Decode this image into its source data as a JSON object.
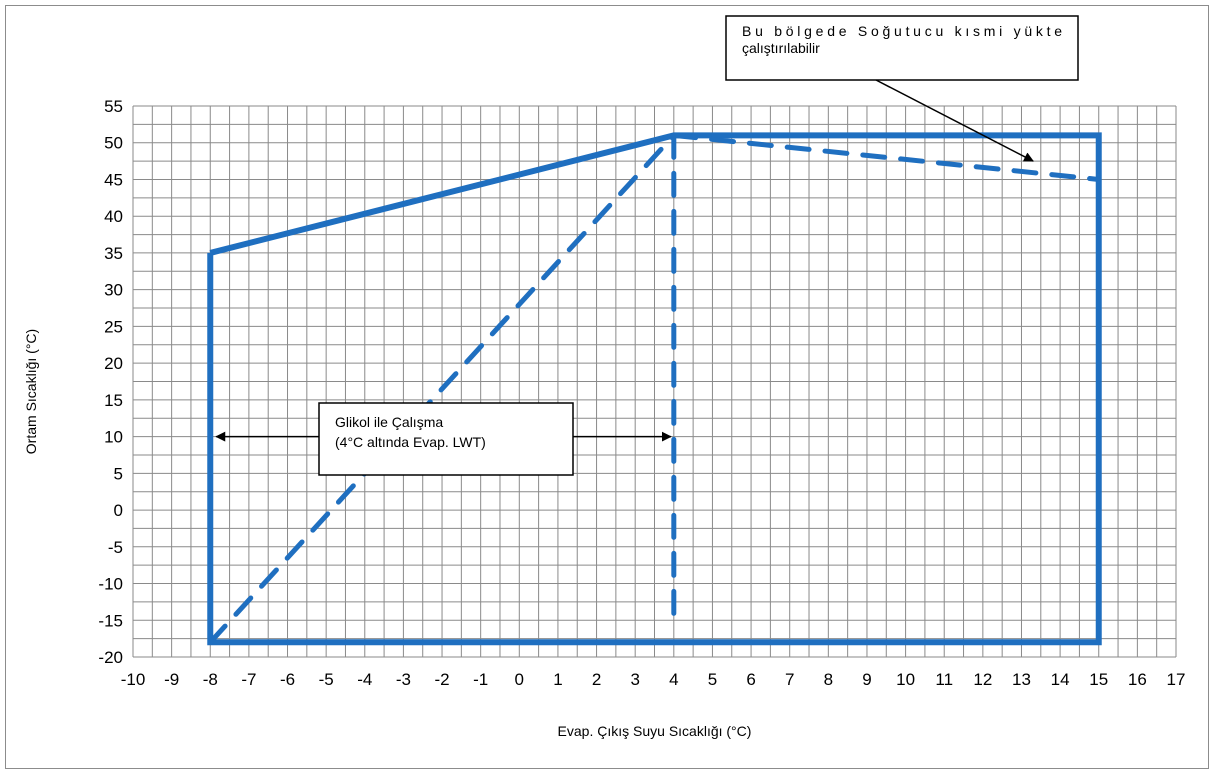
{
  "chart_data": {
    "type": "line",
    "xlabel": "Evap. Çıkış Suyu Sıcaklığı (°C)",
    "ylabel": "Ortam Sıcaklığı (°C)",
    "xlim": [
      -10,
      17
    ],
    "ylim": [
      -20,
      55
    ],
    "xticks": [
      -10,
      -9,
      -8,
      -7,
      -6,
      -5,
      -4,
      -3,
      -2,
      -1,
      0,
      1,
      2,
      3,
      4,
      5,
      6,
      7,
      8,
      9,
      10,
      11,
      12,
      13,
      14,
      15,
      16,
      17
    ],
    "yticks": [
      55,
      50,
      45,
      40,
      35,
      30,
      25,
      20,
      15,
      10,
      5,
      0,
      -5,
      -10,
      -15,
      -20
    ],
    "grid": true,
    "color": "#1f6fc0",
    "series": [
      {
        "style": "solid",
        "x": [
          -8,
          4,
          15,
          15,
          -8,
          -8
        ],
        "y": [
          35,
          51,
          51,
          -18,
          -18,
          35
        ]
      },
      {
        "style": "dashed",
        "x": [
          -8,
          4
        ],
        "y": [
          -18,
          51
        ]
      },
      {
        "style": "dashed",
        "x": [
          4,
          4
        ],
        "y": [
          51,
          -15
        ]
      },
      {
        "style": "dashed",
        "x": [
          4,
          15
        ],
        "y": [
          51,
          45
        ]
      }
    ],
    "annotations": [
      {
        "id": "partial-load",
        "lines": [
          "Bu bölgede Soğutucu kısmi yükte",
          "çalıştırılabilir"
        ],
        "arrow_to": [
          13.3,
          47.5
        ]
      },
      {
        "id": "glycol",
        "lines": [
          "Glikol ile Çalışma",
          "(4°C altında Evap. LWT)"
        ],
        "arrows_to": [
          [
            -8,
            10
          ],
          [
            4,
            10
          ]
        ]
      }
    ]
  }
}
